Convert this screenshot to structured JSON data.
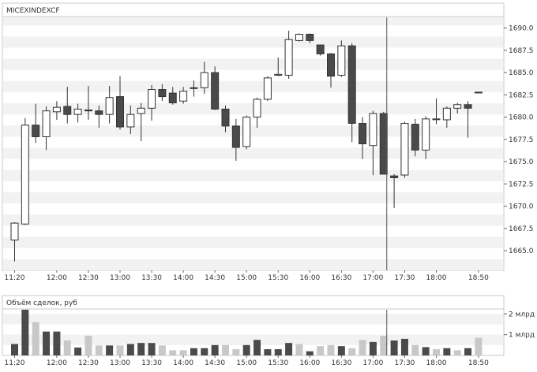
{
  "panel_price": {
    "title": "MICEXINDEXCF"
  },
  "panel_volume": {
    "title": "Объём сделок, руб"
  },
  "colors": {
    "background": "#ffffff",
    "band": "#f2f2f2",
    "frame": "#c8c8c8",
    "bull_fill": "#ffffff",
    "bull_stroke": "#333333",
    "bear_fill": "#4a4a4a",
    "bear_stroke": "#333333",
    "vol_dark": "#4a4a4a",
    "vol_light": "#c8c8c8",
    "cursor": "#555555"
  },
  "chart_data": [
    {
      "type": "candlestick",
      "title": "MICEXINDEXCF",
      "y_axis_position": "right",
      "ylim": [
        1662.8,
        1691.2
      ],
      "y_ticks": [
        1665.0,
        1667.5,
        1670.0,
        1672.5,
        1675.0,
        1677.5,
        1680.0,
        1682.5,
        1685.0,
        1687.5,
        1690.0
      ],
      "y_tick_labels": [
        "1665.0",
        "1667.5",
        "1670.0",
        "1672.5",
        "1675.0",
        "1677.5",
        "1680.0",
        "1682.5",
        "1685.0",
        "1687.5",
        "1690.0"
      ],
      "x_tick_labels": [
        "11:20",
        "12:00",
        "12:30",
        "13:00",
        "13:30",
        "14:00",
        "14:30",
        "15:00",
        "15:30",
        "16:00",
        "16:30",
        "17:00",
        "17:30",
        "18:00",
        "18:50"
      ],
      "x_tick_candle_index": [
        0,
        4,
        7,
        10,
        13,
        16,
        19,
        22,
        25,
        28,
        31,
        34,
        37,
        40,
        44
      ],
      "cursor_candle_index": 35,
      "grid": "alternating horizontal bands",
      "candles": [
        {
          "t": "11:20",
          "o": 1666.2,
          "h": 1668.2,
          "l": 1663.8,
          "c": 1668.1
        },
        {
          "t": "11:30",
          "o": 1668.0,
          "h": 1679.9,
          "l": 1667.9,
          "c": 1679.1
        },
        {
          "t": "11:40",
          "o": 1679.1,
          "h": 1681.5,
          "l": 1677.1,
          "c": 1677.8
        },
        {
          "t": "11:50",
          "o": 1677.8,
          "h": 1681.2,
          "l": 1676.3,
          "c": 1680.7
        },
        {
          "t": "12:00",
          "o": 1680.6,
          "h": 1681.8,
          "l": 1679.7,
          "c": 1681.1
        },
        {
          "t": "12:10",
          "o": 1681.2,
          "h": 1683.4,
          "l": 1679.3,
          "c": 1680.3
        },
        {
          "t": "12:20",
          "o": 1680.3,
          "h": 1681.5,
          "l": 1679.4,
          "c": 1680.9
        },
        {
          "t": "12:30",
          "o": 1680.8,
          "h": 1683.5,
          "l": 1679.7,
          "c": 1680.7
        },
        {
          "t": "12:40",
          "o": 1680.7,
          "h": 1681.3,
          "l": 1678.8,
          "c": 1680.3
        },
        {
          "t": "12:50",
          "o": 1680.3,
          "h": 1683.5,
          "l": 1679.3,
          "c": 1682.2
        },
        {
          "t": "13:00",
          "o": 1682.3,
          "h": 1684.6,
          "l": 1678.6,
          "c": 1678.9
        },
        {
          "t": "13:10",
          "o": 1678.9,
          "h": 1681.3,
          "l": 1678.1,
          "c": 1680.3
        },
        {
          "t": "13:20",
          "o": 1680.4,
          "h": 1681.6,
          "l": 1677.3,
          "c": 1681.0
        },
        {
          "t": "13:30",
          "o": 1681.0,
          "h": 1683.6,
          "l": 1679.6,
          "c": 1683.1
        },
        {
          "t": "13:40",
          "o": 1683.1,
          "h": 1683.7,
          "l": 1681.8,
          "c": 1682.3
        },
        {
          "t": "13:50",
          "o": 1682.7,
          "h": 1683.4,
          "l": 1681.4,
          "c": 1681.6
        },
        {
          "t": "14:00",
          "o": 1681.8,
          "h": 1683.4,
          "l": 1681.5,
          "c": 1682.9
        },
        {
          "t": "14:10",
          "o": 1683.3,
          "h": 1684.1,
          "l": 1682.3,
          "c": 1683.3
        },
        {
          "t": "14:20",
          "o": 1683.3,
          "h": 1686.2,
          "l": 1682.6,
          "c": 1685.0
        },
        {
          "t": "14:30",
          "o": 1685.0,
          "h": 1685.7,
          "l": 1680.8,
          "c": 1680.9
        },
        {
          "t": "14:40",
          "o": 1680.9,
          "h": 1681.3,
          "l": 1678.3,
          "c": 1679.0
        },
        {
          "t": "14:50",
          "o": 1679.0,
          "h": 1679.8,
          "l": 1675.1,
          "c": 1676.6
        },
        {
          "t": "15:00",
          "o": 1676.7,
          "h": 1680.2,
          "l": 1676.4,
          "c": 1680.0
        },
        {
          "t": "15:10",
          "o": 1680.0,
          "h": 1682.2,
          "l": 1678.8,
          "c": 1682.0
        },
        {
          "t": "15:20",
          "o": 1682.0,
          "h": 1684.6,
          "l": 1681.8,
          "c": 1684.4
        },
        {
          "t": "15:30",
          "o": 1684.7,
          "h": 1686.7,
          "l": 1684.6,
          "c": 1684.8
        },
        {
          "t": "15:40",
          "o": 1684.7,
          "h": 1689.7,
          "l": 1684.3,
          "c": 1688.7
        },
        {
          "t": "15:50",
          "o": 1688.6,
          "h": 1689.4,
          "l": 1688.5,
          "c": 1689.3
        },
        {
          "t": "16:00",
          "o": 1689.3,
          "h": 1689.4,
          "l": 1688.3,
          "c": 1688.6
        },
        {
          "t": "16:10",
          "o": 1688.1,
          "h": 1688.1,
          "l": 1686.9,
          "c": 1687.1
        },
        {
          "t": "16:20",
          "o": 1687.1,
          "h": 1687.2,
          "l": 1683.3,
          "c": 1684.6
        },
        {
          "t": "16:30",
          "o": 1684.7,
          "h": 1688.6,
          "l": 1684.5,
          "c": 1688.0
        },
        {
          "t": "16:40",
          "o": 1688.0,
          "h": 1688.3,
          "l": 1677.2,
          "c": 1679.3
        },
        {
          "t": "16:50",
          "o": 1679.3,
          "h": 1680.0,
          "l": 1675.3,
          "c": 1677.0
        },
        {
          "t": "17:00",
          "o": 1676.8,
          "h": 1680.7,
          "l": 1673.5,
          "c": 1680.4
        },
        {
          "t": "17:10",
          "o": 1680.4,
          "h": 1680.6,
          "l": 1673.6,
          "c": 1673.6
        },
        {
          "t": "17:20",
          "o": 1673.4,
          "h": 1673.6,
          "l": 1669.8,
          "c": 1673.2
        },
        {
          "t": "17:30",
          "o": 1673.5,
          "h": 1679.5,
          "l": 1673.2,
          "c": 1679.3
        },
        {
          "t": "17:40",
          "o": 1679.2,
          "h": 1679.8,
          "l": 1675.6,
          "c": 1676.3
        },
        {
          "t": "17:50",
          "o": 1676.3,
          "h": 1680.1,
          "l": 1675.3,
          "c": 1679.8
        },
        {
          "t": "18:00",
          "o": 1679.8,
          "h": 1682.1,
          "l": 1679.2,
          "c": 1679.8
        },
        {
          "t": "18:10",
          "o": 1679.7,
          "h": 1681.2,
          "l": 1678.8,
          "c": 1681.0
        },
        {
          "t": "18:20",
          "o": 1681.0,
          "h": 1681.6,
          "l": 1680.4,
          "c": 1681.4
        },
        {
          "t": "18:30",
          "o": 1681.4,
          "h": 1681.8,
          "l": 1677.7,
          "c": 1681.0
        },
        {
          "t": "18:50",
          "o": 1682.8,
          "h": 1682.8,
          "l": 1682.8,
          "c": 1682.8
        }
      ]
    },
    {
      "type": "bar",
      "title": "Объём сделок, руб",
      "y_axis_position": "right",
      "unit_label": "млрд",
      "ylim": [
        0,
        2.2
      ],
      "y_ticks": [
        1,
        2
      ],
      "y_tick_labels": [
        "1 млрд",
        "2 млрд"
      ],
      "x_tick_labels": [
        "11:20",
        "12:00",
        "12:30",
        "13:00",
        "13:30",
        "14:00",
        "14:30",
        "15:00",
        "15:30",
        "16:00",
        "16:30",
        "17:00",
        "17:30",
        "18:00",
        "18:50"
      ],
      "x_tick_candle_index": [
        0,
        4,
        7,
        10,
        13,
        16,
        19,
        22,
        25,
        28,
        31,
        34,
        37,
        40,
        44
      ],
      "values": [
        0.55,
        2.2,
        1.6,
        1.15,
        1.15,
        0.72,
        0.38,
        0.95,
        0.48,
        0.48,
        0.48,
        0.55,
        0.6,
        0.6,
        0.48,
        0.25,
        0.25,
        0.35,
        0.35,
        0.5,
        0.5,
        0.3,
        0.5,
        0.75,
        0.3,
        0.3,
        0.6,
        0.55,
        0.2,
        0.45,
        0.5,
        0.45,
        0.35,
        0.75,
        0.65,
        0.95,
        0.72,
        0.8,
        0.5,
        0.4,
        0.3,
        0.35,
        0.25,
        0.35,
        0.85
      ],
      "series_shade": [
        "dark",
        "dark",
        "light",
        "dark",
        "dark",
        "light",
        "dark",
        "light",
        "light",
        "dark",
        "light",
        "dark",
        "dark",
        "dark",
        "light",
        "light",
        "light",
        "dark",
        "dark",
        "dark",
        "light",
        "light",
        "dark",
        "dark",
        "dark",
        "dark",
        "dark",
        "light",
        "dark",
        "light",
        "light",
        "dark",
        "light",
        "light",
        "dark",
        "light",
        "dark",
        "dark",
        "light",
        "dark",
        "light",
        "dark",
        "light",
        "dark",
        "light"
      ]
    }
  ]
}
